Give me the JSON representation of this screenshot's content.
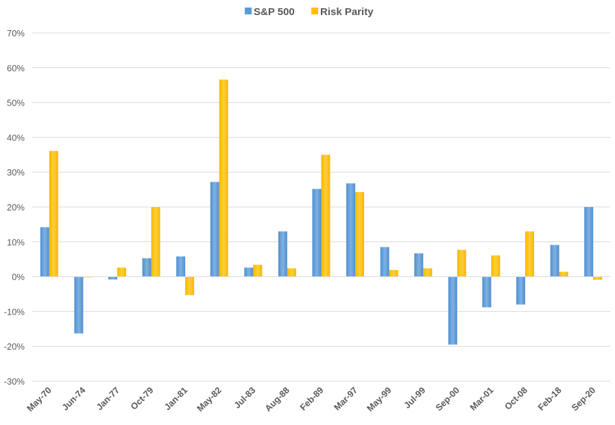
{
  "chart_data": {
    "type": "bar",
    "title": "",
    "xlabel": "",
    "ylabel": "",
    "ylim": [
      -30,
      70
    ],
    "y_ticks": [
      -30,
      -20,
      -10,
      0,
      10,
      20,
      30,
      40,
      50,
      60,
      70
    ],
    "y_tick_labels": [
      "-30%",
      "-20%",
      "-10%",
      "0%",
      "10%",
      "20%",
      "30%",
      "40%",
      "50%",
      "60%",
      "70%"
    ],
    "grid": true,
    "legend_position": "top-center",
    "categories": [
      "May-70",
      "Jun-74",
      "Jan-77",
      "Oct-79",
      "Jan-81",
      "May-82",
      "Jul-83",
      "Aug-88",
      "Feb-89",
      "Mar-97",
      "May-99",
      "Jul-99",
      "Sep-00",
      "Mar-01",
      "Oct-08",
      "Feb-18",
      "Sep-20"
    ],
    "series": [
      {
        "name": "S&P 500",
        "color": "#5B9BD5",
        "values": [
          14.2,
          -16.3,
          -0.8,
          5.3,
          5.8,
          27.2,
          2.6,
          13.0,
          25.2,
          26.8,
          8.5,
          6.7,
          -19.5,
          -8.8,
          -8.0,
          9.1,
          20.0
        ]
      },
      {
        "name": "Risk Parity",
        "color": "#FFC000",
        "values": [
          36.1,
          -0.2,
          2.6,
          20.0,
          -5.3,
          56.6,
          3.4,
          2.4,
          35.0,
          24.3,
          1.9,
          2.4,
          7.7,
          6.1,
          13.0,
          1.4,
          -0.9
        ]
      }
    ]
  }
}
